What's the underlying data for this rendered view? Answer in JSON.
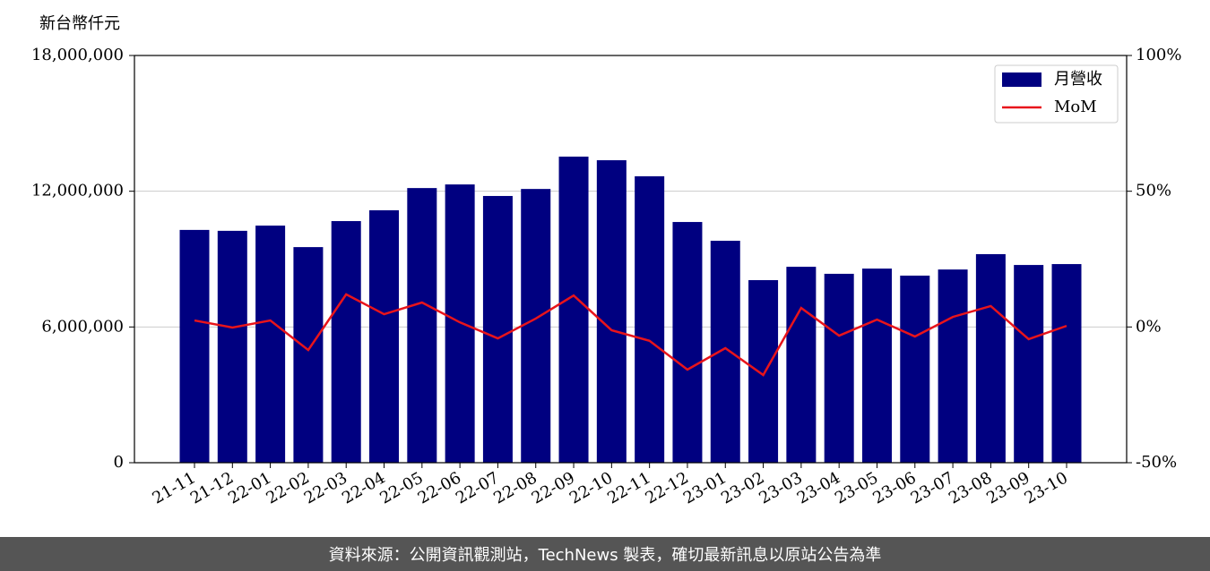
{
  "chart_data": {
    "type": "bar_line",
    "y_label": "新台幣仟元",
    "categories": [
      "21-11",
      "21-12",
      "22-01",
      "22-02",
      "22-03",
      "22-04",
      "22-05",
      "22-06",
      "22-07",
      "22-08",
      "22-09",
      "22-10",
      "22-11",
      "22-12",
      "23-01",
      "23-02",
      "23-03",
      "23-04",
      "23-05",
      "23-06",
      "23-07",
      "23-08",
      "23-09",
      "23-10"
    ],
    "series": [
      {
        "name": "月營收",
        "type": "bar",
        "color": "#000080",
        "values": [
          10290000,
          10250000,
          10480000,
          9530000,
          10680000,
          11160000,
          12140000,
          12300000,
          11790000,
          12100000,
          13530000,
          13370000,
          12660000,
          10640000,
          9810000,
          8070000,
          8660000,
          8350000,
          8580000,
          8270000,
          8540000,
          9220000,
          8740000,
          8780000
        ]
      },
      {
        "name": "MoM",
        "type": "line",
        "axis": "y2",
        "color": "#e8141b",
        "values": [
          2.4,
          -0.2,
          2.4,
          -8.5,
          12,
          4.7,
          9,
          1.7,
          -4.2,
          3.1,
          11.6,
          -1.2,
          -5.1,
          -15.7,
          -7.8,
          -17.7,
          7,
          -3.2,
          2.7,
          -3.5,
          3.7,
          7.7,
          -4.5,
          0.4
        ]
      }
    ],
    "ylim": [
      0,
      18000000
    ],
    "yticks": [
      0,
      {
        "value": 6000000,
        "label": "6,000,000"
      },
      {
        "value": 12000000,
        "label": "12,000,000"
      },
      {
        "value": 18000000,
        "label": "18,000,000"
      }
    ],
    "y2lim": [
      -50,
      100
    ],
    "y2ticks": [
      {
        "value": -50,
        "label": "-50%"
      },
      {
        "value": 0,
        "label": "0%"
      },
      {
        "value": 50,
        "label": "50%"
      },
      {
        "value": 100,
        "label": "100%"
      }
    ],
    "grid": true,
    "legend": "upper right"
  },
  "footer": "資料來源：公開資訊觀測站，TechNews 製表，確切最新訊息以原站公告為準"
}
